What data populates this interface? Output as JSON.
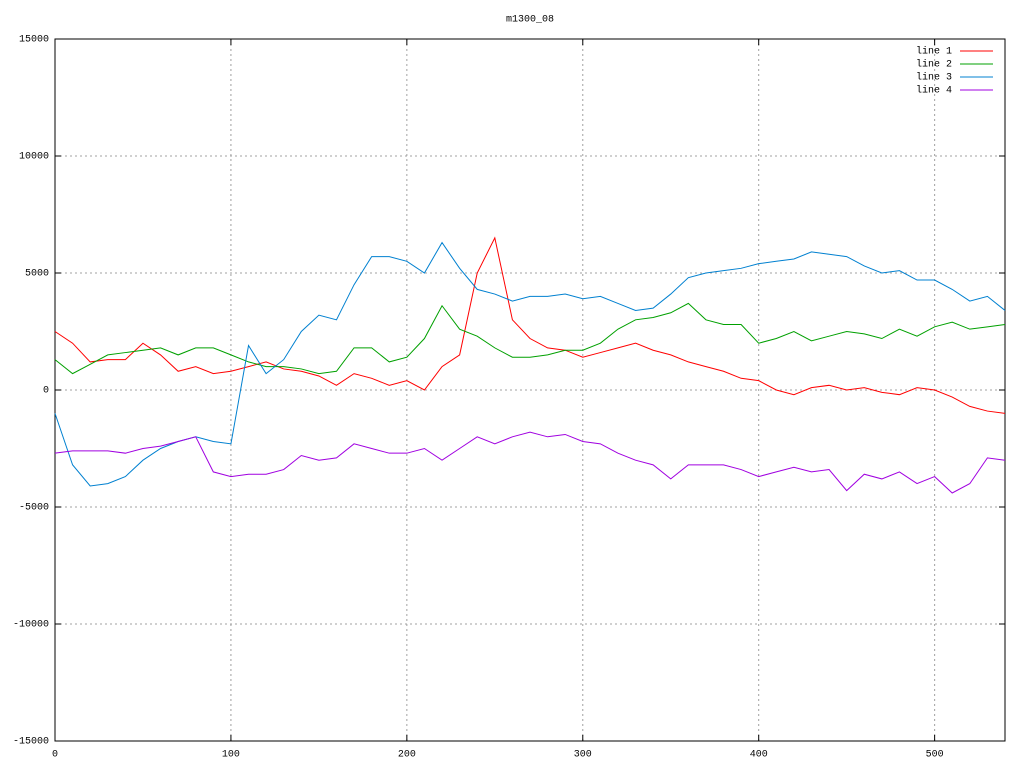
{
  "chart_data": {
    "type": "line",
    "title": "m1300_08",
    "x": [
      0,
      10,
      20,
      30,
      40,
      50,
      60,
      70,
      80,
      90,
      100,
      110,
      120,
      130,
      140,
      150,
      160,
      170,
      180,
      190,
      200,
      210,
      220,
      230,
      240,
      250,
      260,
      270,
      280,
      290,
      300,
      310,
      320,
      330,
      340,
      350,
      360,
      370,
      380,
      390,
      400,
      410,
      420,
      430,
      440,
      450,
      460,
      470,
      480,
      490,
      500,
      510,
      520,
      530,
      540
    ],
    "series": [
      {
        "name": "line 1",
        "color": "#ff0000",
        "values": [
          2500,
          2000,
          1200,
          1300,
          1300,
          2000,
          1500,
          800,
          1000,
          700,
          800,
          1000,
          1200,
          900,
          800,
          600,
          200,
          700,
          500,
          200,
          400,
          0,
          1000,
          1500,
          5000,
          6500,
          3000,
          2200,
          1800,
          1700,
          1400,
          1600,
          1800,
          2000,
          1700,
          1500,
          1200,
          1000,
          800,
          500,
          400,
          0,
          -200,
          100,
          200,
          0,
          100,
          -100,
          -200,
          100,
          0,
          -300,
          -700,
          -900,
          -1000
        ]
      },
      {
        "name": "line 2",
        "color": "#00a000",
        "values": [
          1300,
          700,
          1100,
          1500,
          1600,
          1700,
          1800,
          1500,
          1800,
          1800,
          1500,
          1200,
          1000,
          1000,
          900,
          700,
          800,
          1800,
          1800,
          1200,
          1400,
          2200,
          3600,
          2600,
          2300,
          1800,
          1400,
          1400,
          1500,
          1700,
          1700,
          2000,
          2600,
          3000,
          3100,
          3300,
          3700,
          3000,
          2800,
          2800,
          2000,
          2200,
          2500,
          2100,
          2300,
          2500,
          2400,
          2200,
          2600,
          2300,
          2700,
          2900,
          2600,
          2700,
          2800
        ]
      },
      {
        "name": "line 3",
        "color": "#0080d0",
        "values": [
          -1000,
          -3200,
          -4100,
          -4000,
          -3700,
          -3000,
          -2500,
          -2200,
          -2000,
          -2200,
          -2300,
          1900,
          700,
          1300,
          2500,
          3200,
          3000,
          4500,
          5700,
          5700,
          5500,
          5000,
          6300,
          5200,
          4300,
          4100,
          3800,
          4000,
          4000,
          4100,
          3900,
          4000,
          3700,
          3400,
          3500,
          4100,
          4800,
          5000,
          5100,
          5200,
          5400,
          5500,
          5600,
          5900,
          5800,
          5700,
          5300,
          5000,
          5100,
          4700,
          4700,
          4300,
          3800,
          4000,
          3400
        ]
      },
      {
        "name": "line 4",
        "color": "#a000e0",
        "values": [
          -2700,
          -2600,
          -2600,
          -2600,
          -2700,
          -2500,
          -2400,
          -2200,
          -2000,
          -3500,
          -3700,
          -3600,
          -3600,
          -3400,
          -2800,
          -3000,
          -2900,
          -2300,
          -2500,
          -2700,
          -2700,
          -2500,
          -3000,
          -2500,
          -2000,
          -2300,
          -2000,
          -1800,
          -2000,
          -1900,
          -2200,
          -2300,
          -2700,
          -3000,
          -3200,
          -3800,
          -3200,
          -3200,
          -3200,
          -3400,
          -3700,
          -3500,
          -3300,
          -3500,
          -3400,
          -4300,
          -3600,
          -3800,
          -3500,
          -4000,
          -3700,
          -4400,
          -4000,
          -2900,
          -3000
        ]
      }
    ],
    "xlim": [
      0,
      540
    ],
    "xticks": [
      0,
      100,
      200,
      300,
      400,
      500
    ],
    "ylim": [
      -15000,
      15000
    ],
    "yticks": [
      -15000,
      -10000,
      -5000,
      0,
      5000,
      10000,
      15000
    ],
    "grid": true,
    "legend": "top-right"
  }
}
